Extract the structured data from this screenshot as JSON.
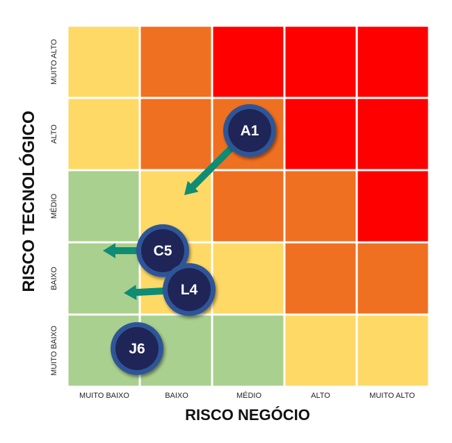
{
  "y_axis": {
    "title": "RISCO TECNOLÓGICO",
    "ticks": [
      "MUITO ALTO",
      "ALTO",
      "MÉDIO",
      "BAIXO",
      "MUITO BAIXO"
    ]
  },
  "x_axis": {
    "title": "RISCO NEGÓCIO",
    "ticks": [
      "MUITO BAIXO",
      "BAIXO",
      "MÉDIO",
      "ALTO",
      "MUITO ALTO"
    ]
  },
  "colors": {
    "green": "#A9D08E",
    "yellow": "#FFD966",
    "orange": "#F07021",
    "red": "#FF0000",
    "marker_fill": "#1F2557",
    "marker_ring": "#2F5597",
    "arrow": "#0E8C74"
  },
  "grid": [
    [
      "yellow",
      "orange",
      "red",
      "red",
      "red"
    ],
    [
      "yellow",
      "orange",
      "orange",
      "red",
      "red"
    ],
    [
      "green",
      "yellow",
      "orange",
      "orange",
      "red"
    ],
    [
      "green",
      "yellow",
      "yellow",
      "orange",
      "orange"
    ],
    [
      "green",
      "green",
      "green",
      "yellow",
      "yellow"
    ]
  ],
  "items": [
    {
      "id": "A1",
      "business_risk": "MÉDIO",
      "tech_risk": "ALTO",
      "moved_to": {
        "business_risk": "BAIXO",
        "tech_risk": "MÉDIO"
      }
    },
    {
      "id": "C5",
      "business_risk": "BAIXO",
      "tech_risk": "BAIXO",
      "moved_to": {
        "business_risk": "MUITO BAIXO",
        "tech_risk": "BAIXO"
      }
    },
    {
      "id": "L4",
      "business_risk": "BAIXO",
      "tech_risk": "BAIXO",
      "moved_to": {
        "business_risk": "MUITO BAIXO",
        "tech_risk": "BAIXO"
      }
    },
    {
      "id": "J6",
      "business_risk": "MUITO BAIXO",
      "tech_risk": "MUITO BAIXO",
      "moved_to": null
    }
  ]
}
